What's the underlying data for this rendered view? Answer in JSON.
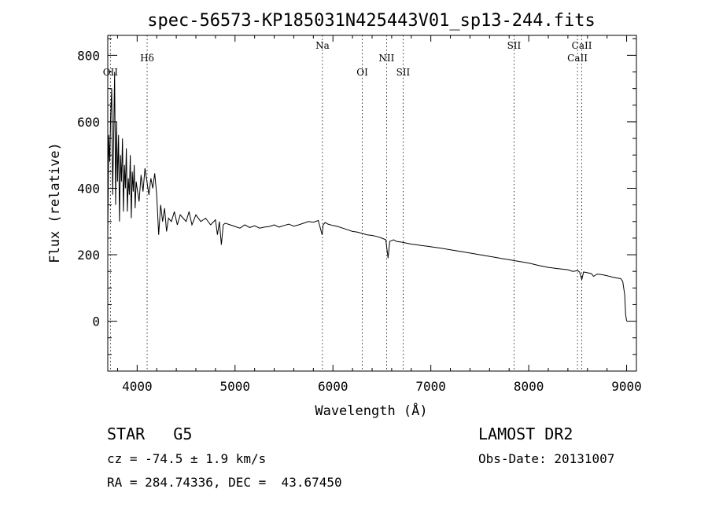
{
  "chart_data": {
    "type": "line",
    "title": "spec-56573-KP185031N425443V01_sp13-244.fits",
    "xlabel": "Wavelength (Å)",
    "ylabel": "Flux (relative)",
    "xlim": [
      3700,
      9100
    ],
    "ylim": [
      -150,
      860
    ],
    "xticks": [
      4000,
      5000,
      6000,
      7000,
      8000,
      9000
    ],
    "yticks": [
      0,
      200,
      400,
      600,
      800
    ],
    "grid": false,
    "series": [
      {
        "x": [
          3700,
          3710,
          3720,
          3730,
          3740,
          3750,
          3760,
          3770,
          3780,
          3790,
          3800,
          3810,
          3820,
          3830,
          3840,
          3850,
          3860,
          3870,
          3880,
          3890,
          3900,
          3910,
          3920,
          3930,
          3940,
          3950,
          3960,
          3970,
          3980,
          3990,
          4000,
          4020,
          4040,
          4060,
          4080,
          4100,
          4120,
          4140,
          4160,
          4180,
          4200,
          4220,
          4240,
          4260,
          4280,
          4300,
          4320,
          4350,
          4380,
          4410,
          4440,
          4470,
          4500,
          4530,
          4560,
          4600,
          4650,
          4700,
          4750,
          4800,
          4820,
          4840,
          4860,
          4880,
          4900,
          4950,
          5000,
          5050,
          5100,
          5150,
          5200,
          5250,
          5300,
          5350,
          5400,
          5450,
          5500,
          5550,
          5600,
          5650,
          5700,
          5750,
          5800,
          5850,
          5890,
          5900,
          5920,
          5950,
          6000,
          6050,
          6100,
          6150,
          6200,
          6250,
          6300,
          6350,
          6400,
          6450,
          6500,
          6540,
          6563,
          6580,
          6620,
          6650,
          6700,
          6750,
          6800,
          6850,
          6900,
          6950,
          7000,
          7100,
          7200,
          7300,
          7400,
          7500,
          7600,
          7700,
          7800,
          7900,
          8000,
          8100,
          8200,
          8300,
          8400,
          8450,
          8500,
          8520,
          8542,
          8560,
          8600,
          8640,
          8662,
          8700,
          8750,
          8800,
          8850,
          8900,
          8940,
          8960,
          8980,
          8990,
          9000
        ],
        "values": [
          250,
          560,
          480,
          620,
          700,
          380,
          560,
          750,
          350,
          600,
          420,
          560,
          300,
          500,
          420,
          550,
          330,
          470,
          400,
          520,
          330,
          430,
          380,
          500,
          310,
          450,
          390,
          470,
          340,
          420,
          400,
          360,
          440,
          390,
          460,
          420,
          380,
          430,
          400,
          445,
          380,
          260,
          350,
          300,
          340,
          270,
          310,
          300,
          330,
          290,
          320,
          310,
          300,
          330,
          290,
          320,
          300,
          310,
          290,
          305,
          260,
          300,
          230,
          290,
          295,
          290,
          285,
          280,
          290,
          282,
          287,
          280,
          283,
          285,
          290,
          283,
          288,
          292,
          286,
          290,
          295,
          300,
          298,
          303,
          260,
          290,
          297,
          292,
          288,
          285,
          280,
          275,
          270,
          268,
          264,
          260,
          258,
          255,
          250,
          245,
          190,
          240,
          245,
          240,
          238,
          235,
          232,
          230,
          228,
          226,
          224,
          220,
          215,
          210,
          205,
          200,
          195,
          190,
          185,
          180,
          175,
          168,
          162,
          158,
          155,
          150,
          152,
          148,
          125,
          148,
          146,
          143,
          135,
          142,
          140,
          137,
          133,
          130,
          128,
          120,
          80,
          20,
          0
        ]
      }
    ],
    "lines": [
      {
        "label": "OII",
        "x": 3727,
        "row": 2
      },
      {
        "label": "Hδ",
        "x": 4102,
        "row": 1
      },
      {
        "label": "Na",
        "x": 5893,
        "row": 0
      },
      {
        "label": "OI",
        "x": 6300,
        "row": 2
      },
      {
        "label": "NII",
        "x": 6548,
        "row": 1
      },
      {
        "label": "SII",
        "x": 6717,
        "row": 2
      },
      {
        "label": "SII",
        "x": 7850,
        "row": 0
      },
      {
        "label": "CaII",
        "x": 8498,
        "row": 1
      },
      {
        "label": "CaII",
        "x": 8542,
        "row": 0
      }
    ]
  },
  "footer": {
    "object_class": "STAR",
    "subclass": "G5",
    "redshift": "cz = -74.5 ± 1.9 km/s",
    "coords": "RA = 284.74336, DEC =  43.67450",
    "survey": "LAMOST DR2",
    "obs_date": "Obs-Date: 20131007"
  }
}
